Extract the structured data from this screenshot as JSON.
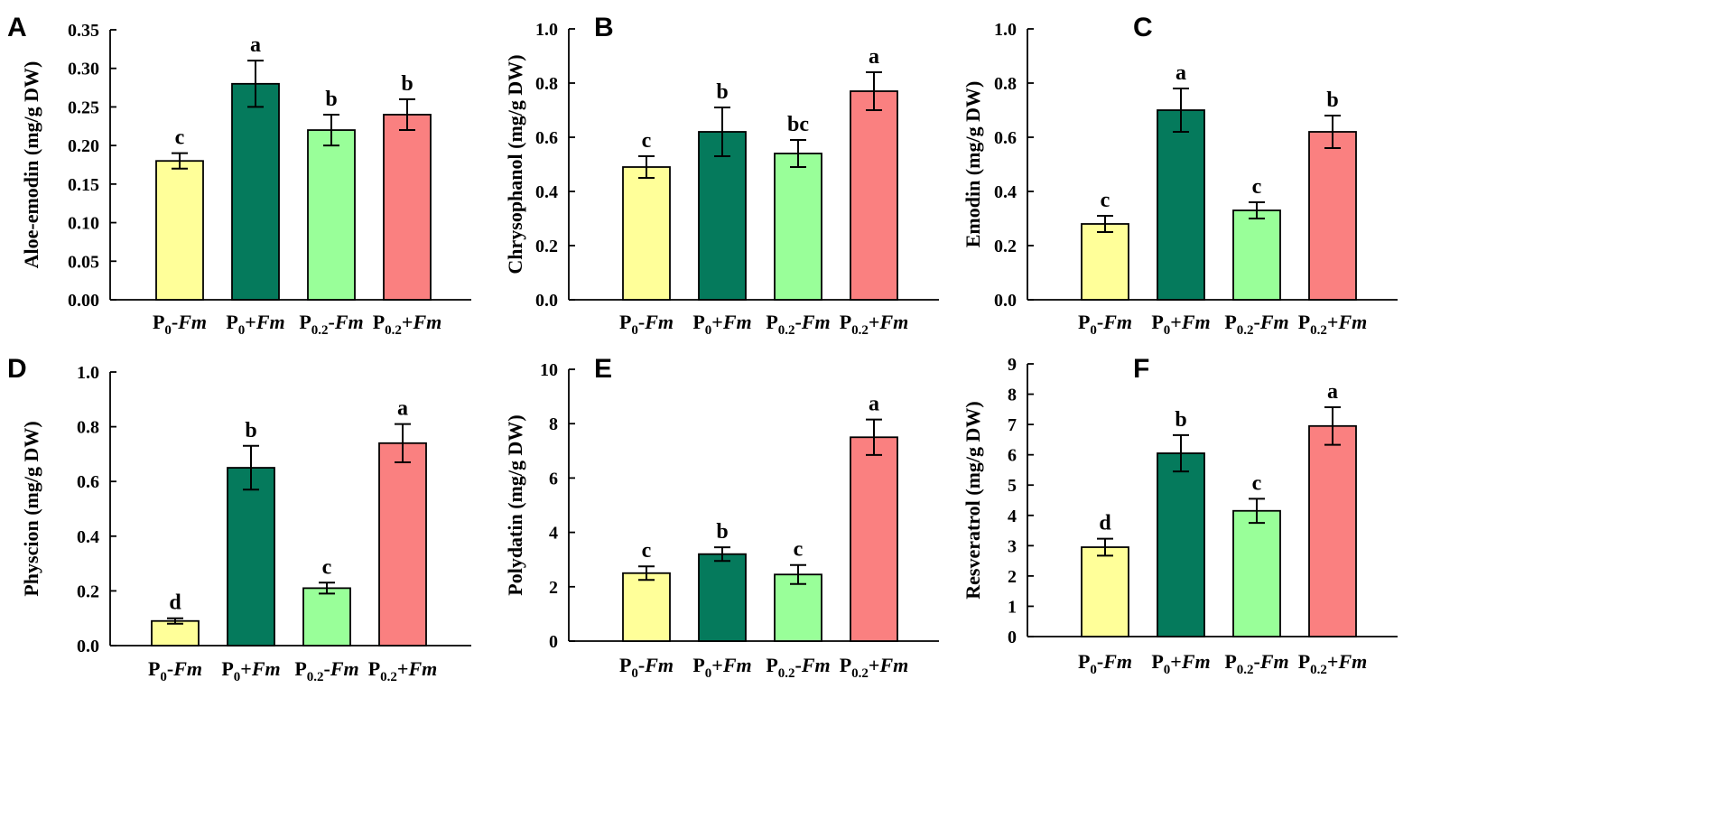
{
  "colors": {
    "P0-Fm": "#ffff99",
    "P0+Fm": "#057a5c",
    "P0.2-Fm": "#99ff99",
    "P0.2+Fm": "#fa8080"
  },
  "chart_data": [
    {
      "panel": "A",
      "type": "bar",
      "ylabel": "Aloe-emodin (mg/g DW)",
      "ylim": [
        0,
        0.35
      ],
      "yticks": [
        0.0,
        0.05,
        0.1,
        0.15,
        0.2,
        0.25,
        0.3,
        0.35
      ],
      "ytick_labels": [
        "0.00",
        "0.05",
        "0.10",
        "0.15",
        "0.20",
        "0.25",
        "0.30",
        "0.35"
      ],
      "categories": [
        {
          "base": "P",
          "sub": "0",
          "sign": "-",
          "italic": "Fm"
        },
        {
          "base": "P",
          "sub": "0",
          "sign": "+",
          "italic": "Fm"
        },
        {
          "base": "P",
          "sub": "0.2",
          "sign": "-",
          "italic": "Fm"
        },
        {
          "base": "P",
          "sub": "0.2",
          "sign": "+",
          "italic": "Fm"
        }
      ],
      "values": [
        0.18,
        0.28,
        0.22,
        0.24
      ],
      "errors": [
        0.01,
        0.03,
        0.02,
        0.02
      ],
      "letters": [
        "c",
        "a",
        "b",
        "b"
      ]
    },
    {
      "panel": "B",
      "type": "bar",
      "ylabel": "Chrysophanol (mg/g DW)",
      "ylim": [
        0,
        1.0
      ],
      "yticks": [
        0.0,
        0.2,
        0.4,
        0.6,
        0.8,
        1.0
      ],
      "ytick_labels": [
        "0.0",
        "0.2",
        "0.4",
        "0.6",
        "0.8",
        "1.0"
      ],
      "categories": [
        {
          "base": "P",
          "sub": "0",
          "sign": "-",
          "italic": "Fm"
        },
        {
          "base": "P",
          "sub": "0",
          "sign": "+",
          "italic": "Fm"
        },
        {
          "base": "P",
          "sub": "0.2",
          "sign": "-",
          "italic": "Fm"
        },
        {
          "base": "P",
          "sub": "0.2",
          "sign": "+",
          "italic": "Fm"
        }
      ],
      "values": [
        0.49,
        0.62,
        0.54,
        0.77
      ],
      "errors": [
        0.04,
        0.09,
        0.05,
        0.07
      ],
      "letters": [
        "c",
        "b",
        "bc",
        "a"
      ]
    },
    {
      "panel": "C",
      "type": "bar",
      "ylabel": "Emodin (mg/g DW)",
      "ylim": [
        0,
        1.0
      ],
      "yticks": [
        0.0,
        0.2,
        0.4,
        0.6,
        0.8,
        1.0
      ],
      "ytick_labels": [
        "0.0",
        "0.2",
        "0.4",
        "0.6",
        "0.8",
        "1.0"
      ],
      "categories": [
        {
          "base": "P",
          "sub": "0",
          "sign": "-",
          "italic": "Fm"
        },
        {
          "base": "P",
          "sub": "0",
          "sign": "+",
          "italic": "Fm"
        },
        {
          "base": "P",
          "sub": "0.2",
          "sign": "-",
          "italic": "Fm"
        },
        {
          "base": "P",
          "sub": "0.2",
          "sign": "+",
          "italic": "Fm"
        }
      ],
      "values": [
        0.28,
        0.7,
        0.33,
        0.62
      ],
      "errors": [
        0.03,
        0.08,
        0.03,
        0.06
      ],
      "letters": [
        "c",
        "a",
        "c",
        "b"
      ]
    },
    {
      "panel": "D",
      "type": "bar",
      "ylabel": "Physcion (mg/g DW)",
      "ylim": [
        0,
        1.0
      ],
      "yticks": [
        0.0,
        0.2,
        0.4,
        0.6,
        0.8,
        1.0
      ],
      "ytick_labels": [
        "0.0",
        "0.2",
        "0.4",
        "0.6",
        "0.8",
        "1.0"
      ],
      "categories": [
        {
          "base": "P",
          "sub": "0",
          "sign": "-",
          "italic": "Fm"
        },
        {
          "base": "P",
          "sub": "0",
          "sign": "+",
          "italic": "Fm"
        },
        {
          "base": "P",
          "sub": "0.2",
          "sign": "-",
          "italic": "Fm"
        },
        {
          "base": "P",
          "sub": "0.2",
          "sign": "+",
          "italic": "Fm"
        }
      ],
      "values": [
        0.09,
        0.65,
        0.21,
        0.74
      ],
      "errors": [
        0.01,
        0.08,
        0.02,
        0.07
      ],
      "letters": [
        "d",
        "b",
        "c",
        "a"
      ]
    },
    {
      "panel": "E",
      "type": "bar",
      "ylabel": "Polydatin (mg/g DW)",
      "ylim": [
        0,
        10
      ],
      "yticks": [
        0,
        2,
        4,
        6,
        8,
        10
      ],
      "ytick_labels": [
        "0",
        "2",
        "4",
        "6",
        "8",
        "10"
      ],
      "categories": [
        {
          "base": "P",
          "sub": "0",
          "sign": "-",
          "italic": "Fm"
        },
        {
          "base": "P",
          "sub": "0",
          "sign": "+",
          "italic": "Fm"
        },
        {
          "base": "P",
          "sub": "0.2",
          "sign": "-",
          "italic": "Fm"
        },
        {
          "base": "P",
          "sub": "0.2",
          "sign": "+",
          "italic": "Fm"
        }
      ],
      "values": [
        2.5,
        3.2,
        2.45,
        7.5
      ],
      "errors": [
        0.25,
        0.25,
        0.35,
        0.65
      ],
      "letters": [
        "c",
        "b",
        "c",
        "a"
      ]
    },
    {
      "panel": "F",
      "type": "bar",
      "ylabel": "Resveratrol (mg/g DW)",
      "ylim": [
        0,
        9
      ],
      "yticks": [
        0,
        1,
        2,
        3,
        4,
        5,
        6,
        7,
        8,
        9
      ],
      "ytick_labels": [
        "0",
        "1",
        "2",
        "3",
        "4",
        "5",
        "6",
        "7",
        "8",
        "9"
      ],
      "categories": [
        {
          "base": "P",
          "sub": "0",
          "sign": "-",
          "italic": "Fm"
        },
        {
          "base": "P",
          "sub": "0",
          "sign": "+",
          "italic": "Fm"
        },
        {
          "base": "P",
          "sub": "0.2",
          "sign": "-",
          "italic": "Fm"
        },
        {
          "base": "P",
          "sub": "0.2",
          "sign": "+",
          "italic": "Fm"
        }
      ],
      "values": [
        2.95,
        6.05,
        4.15,
        6.95
      ],
      "errors": [
        0.28,
        0.6,
        0.4,
        0.62
      ],
      "letters": [
        "d",
        "b",
        "c",
        "a"
      ]
    }
  ]
}
